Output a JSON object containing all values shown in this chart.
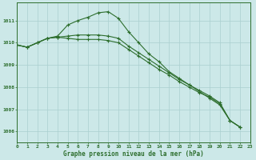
{
  "xlabel": "Graphe pression niveau de la mer (hPa)",
  "xlim": [
    0,
    23
  ],
  "ylim": [
    1005.5,
    1011.8
  ],
  "yticks": [
    1006,
    1007,
    1008,
    1009,
    1010,
    1011
  ],
  "xticks": [
    0,
    1,
    2,
    3,
    4,
    5,
    6,
    7,
    8,
    9,
    10,
    11,
    12,
    13,
    14,
    15,
    16,
    17,
    18,
    19,
    20,
    21,
    22,
    23
  ],
  "background_color": "#cce8e8",
  "grid_color": "#aacfcf",
  "line_color": "#2d6e2d",
  "line1": [
    1009.9,
    1009.8,
    1010.0,
    1010.2,
    1010.3,
    1010.8,
    1011.0,
    1011.15,
    1011.35,
    1011.4,
    1011.1,
    1010.5,
    1010.0,
    1009.5,
    1009.15,
    1008.7,
    1008.4,
    1008.1,
    1007.8,
    1007.5,
    1007.2,
    1006.5,
    1006.2
  ],
  "line2": [
    1009.9,
    1009.8,
    1010.0,
    1010.2,
    1010.25,
    1010.3,
    1010.35,
    1010.35,
    1010.35,
    1010.3,
    1010.2,
    1009.85,
    1009.55,
    1009.25,
    1008.95,
    1008.65,
    1008.35,
    1008.1,
    1007.85,
    1007.6,
    1007.3,
    1006.5,
    1006.2
  ],
  "line3": [
    1009.9,
    1009.8,
    1010.0,
    1010.2,
    1010.25,
    1010.2,
    1010.15,
    1010.15,
    1010.15,
    1010.1,
    1010.0,
    1009.7,
    1009.4,
    1009.1,
    1008.8,
    1008.55,
    1008.25,
    1008.0,
    1007.75,
    1007.55,
    1007.25,
    1006.5,
    1006.2
  ]
}
